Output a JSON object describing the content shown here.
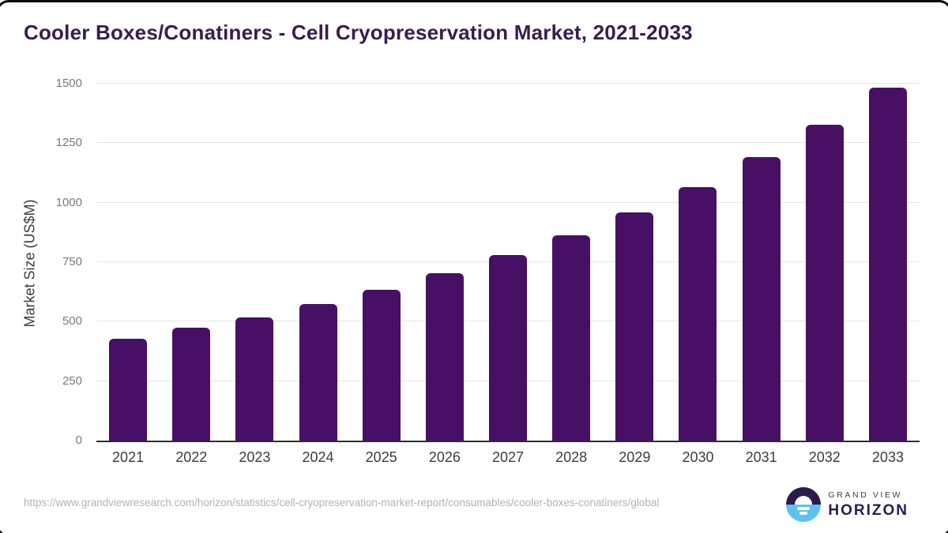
{
  "page": {
    "title": "Cooler Boxes/Conatiners - Cell Cryopreservation Market, 2021-2033"
  },
  "chart_data": {
    "type": "bar",
    "title": "Cooler Boxes/Conatiners - Cell Cryopreservation Market, 2021-2033",
    "categories": [
      "2021",
      "2022",
      "2023",
      "2024",
      "2025",
      "2026",
      "2027",
      "2028",
      "2029",
      "2030",
      "2031",
      "2032",
      "2033"
    ],
    "values": [
      428,
      475,
      519,
      573,
      635,
      703,
      779,
      864,
      960,
      1066,
      1190,
      1327,
      1482
    ],
    "xlabel": "",
    "ylabel": "Market Size (US$M)",
    "ylim": [
      0,
      1500
    ],
    "yticks": [
      0,
      250,
      500,
      750,
      1000,
      1250,
      1500
    ],
    "grid": "horizontal",
    "legend": "none",
    "bar_color": "#471065"
  },
  "colors": {
    "title_text": "#3a1c4e",
    "bar": "#471065",
    "gridline": "#e7e7e7",
    "axis_line": "#2e2e2e",
    "y_tick_text": "#7a7a7a",
    "x_tick_text": "#3d3d3d",
    "source_text": "#b3b3b3",
    "logo_purple": "#2b1b4d",
    "logo_blue": "#5cc3ef"
  },
  "footer": {
    "source_url": "https://www.grandviewresearch.com/horizon/statistics/cell-cryopreservation-market-report/consumables/cooler-boxes-conatiners/global",
    "logo": {
      "line_top": "GRAND VIEW",
      "line_bottom": "HORIZON"
    }
  }
}
